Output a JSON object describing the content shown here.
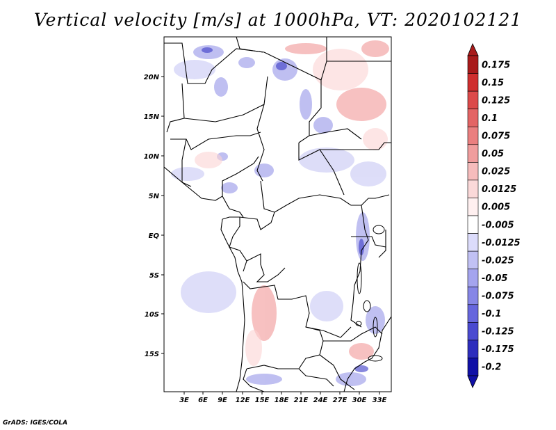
{
  "title": "Vertical velocity [m/s] at 1000hPa, VT: 2020102121",
  "credit": "GrADS: IGES/COLA",
  "lat_ticks": [
    "20N",
    "15N",
    "10N",
    "5N",
    "EQ",
    "5S",
    "10S",
    "15S"
  ],
  "lon_ticks": [
    "3E",
    "6E",
    "9E",
    "12E",
    "15E",
    "18E",
    "21E",
    "24E",
    "27E",
    "30E",
    "33E"
  ],
  "colorbar": {
    "levels": [
      "0.175",
      "0.15",
      "0.125",
      "0.1",
      "0.075",
      "0.05",
      "0.025",
      "0.0125",
      "0.005",
      "-0.005",
      "-0.0125",
      "-0.025",
      "-0.05",
      "-0.075",
      "-0.1",
      "-0.125",
      "-0.175",
      "-0.2"
    ],
    "colors": [
      "#a81b1b",
      "#cf2f2f",
      "#dc4a4a",
      "#e36464",
      "#ea7f7f",
      "#f09d9d",
      "#f6bcbc",
      "#fbd9d9",
      "#fff0f0",
      "#ffffff",
      "#dcdcfb",
      "#c1c1f4",
      "#a4a4ee",
      "#8686e6",
      "#6666dd",
      "#4a4ad0",
      "#2d2dbd",
      "#1010a6"
    ],
    "top_arrow_color": "#a81b1b",
    "bottom_arrow_color": "#1010a6"
  }
}
